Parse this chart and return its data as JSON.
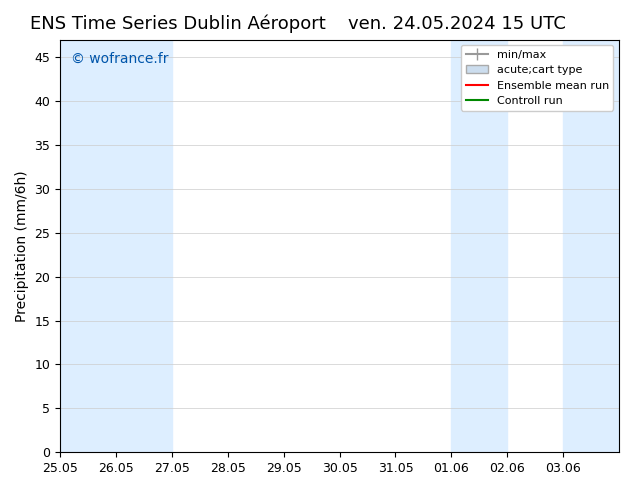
{
  "title_left": "ENS Time Series Dublin Aéroport",
  "title_right": "ven. 24.05.2024 15 UTC",
  "ylabel": "Precipitation (mm/6h)",
  "watermark": "© wofrance.fr",
  "watermark_color": "#0055aa",
  "xlim_start": 0,
  "xlim_end": 10,
  "ylim": [
    0,
    47
  ],
  "yticks": [
    0,
    5,
    10,
    15,
    20,
    25,
    30,
    35,
    40,
    45
  ],
  "xtick_labels": [
    "25.05",
    "26.05",
    "27.05",
    "28.05",
    "29.05",
    "30.05",
    "31.05",
    "01.06",
    "02.06",
    "03.06"
  ],
  "xtick_positions": [
    0,
    1,
    2,
    3,
    4,
    5,
    6,
    7,
    8,
    9
  ],
  "shaded_regions": [
    {
      "xmin": 0,
      "xmax": 1,
      "color": "#ddeeff"
    },
    {
      "xmin": 1,
      "xmax": 2,
      "color": "#ddeeff"
    },
    {
      "xmin": 7,
      "xmax": 8,
      "color": "#ddeeff"
    },
    {
      "xmin": 9,
      "xmax": 10,
      "color": "#ddeeff"
    }
  ],
  "background_color": "#ffffff",
  "legend_items": [
    {
      "label": "min/max",
      "type": "errorbar",
      "color": "#aaaaaa"
    },
    {
      "label": "acute;cart type",
      "type": "bar",
      "color": "#ccddee"
    },
    {
      "label": "Ensemble mean run",
      "type": "line",
      "color": "#ff0000"
    },
    {
      "label": "Controll run",
      "type": "line",
      "color": "#008800"
    }
  ],
  "title_fontsize": 13,
  "tick_fontsize": 9,
  "ylabel_fontsize": 10
}
